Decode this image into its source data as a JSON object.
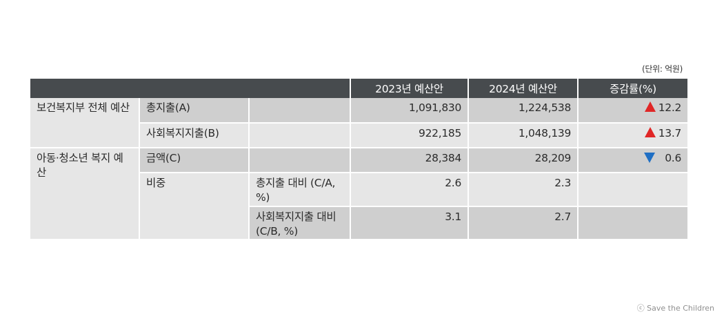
{
  "unit_note": "(단위: 억원)",
  "header": {
    "blank": "",
    "col_2023": "2023년 예산안",
    "col_2024": "2024년 예산안",
    "col_change": "증감률(%)"
  },
  "rows": {
    "mohw_group": "보건복지부 전체 예산",
    "child_group": "아동·청소년 복지 예산",
    "ratio_label": "비중",
    "total": {
      "label": "총지출(A)",
      "v2023": "1,091,830",
      "v2024": "1,224,538",
      "change": "12.2",
      "direction": "up"
    },
    "welfare": {
      "label": "사회복지지출(B)",
      "v2023": "922,185",
      "v2024": "1,048,139",
      "change": "13.7",
      "direction": "up"
    },
    "amount": {
      "label": "금액(C)",
      "v2023": "28,384",
      "v2024": "28,209",
      "change": "0.6",
      "direction": "down"
    },
    "ratio_total": {
      "label": "총지출 대비 (C/A, %)",
      "v2023": "2.6",
      "v2024": "2.3"
    },
    "ratio_welfare": {
      "label": "사회복지지출 대비(C/B, %)",
      "v2023": "3.1",
      "v2024": "2.7"
    }
  },
  "colors": {
    "header_bg": "#474b4e",
    "cell_dark": "#cfcfcf",
    "cell_light": "#e6e6e6",
    "up": "#e02626",
    "down": "#1f6fc4"
  },
  "icons": {
    "up": "triangle-up-icon",
    "down": "triangle-down-icon"
  },
  "copyright": "ⓒ Save the Children"
}
